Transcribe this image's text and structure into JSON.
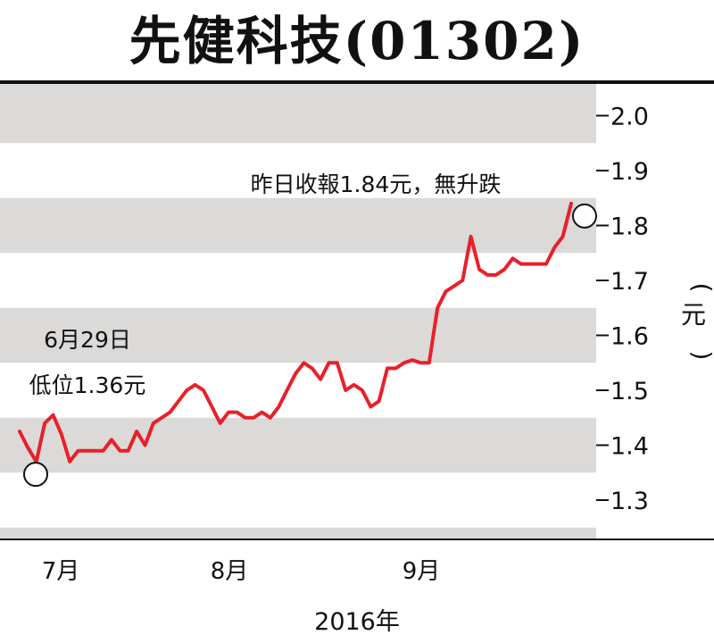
{
  "title": "先健科技(01302)",
  "colors": {
    "line": "#e8202a",
    "band": "#dcdad8",
    "text": "#111111",
    "background": "#ffffff"
  },
  "chart_data": {
    "type": "line",
    "title": "先健科技(01302)",
    "ylabel": "元",
    "xlabel": "2016年",
    "ylim": [
      1.25,
      2.05
    ],
    "y_ticks": [
      "2.0",
      "1.9",
      "1.8",
      "1.7",
      "1.6",
      "1.5",
      "1.4",
      "1.3"
    ],
    "x_ticks": [
      "7月",
      "8月",
      "9月"
    ],
    "background_bands": true,
    "series": [
      {
        "values": [
          1.425,
          1.395,
          1.37,
          1.44,
          1.455,
          1.42,
          1.37,
          1.39,
          1.39,
          1.39,
          1.39,
          1.41,
          1.39,
          1.39,
          1.425,
          1.4,
          1.44,
          1.45,
          1.46,
          1.48,
          1.5,
          1.51,
          1.5,
          1.47,
          1.44,
          1.46,
          1.46,
          1.45,
          1.45,
          1.46,
          1.45,
          1.47,
          1.5,
          1.53,
          1.55,
          1.54,
          1.52,
          1.55,
          1.55,
          1.5,
          1.51,
          1.5,
          1.47,
          1.48,
          1.54,
          1.54,
          1.55,
          1.555,
          1.55,
          1.55,
          1.65,
          1.68,
          1.69,
          1.7,
          1.78,
          1.72,
          1.71,
          1.71,
          1.72,
          1.74,
          1.73,
          1.73,
          1.73,
          1.73,
          1.76,
          1.78,
          1.84
        ]
      }
    ],
    "annotations": [
      {
        "lines": [
          "6月29日",
          "低位1.36元"
        ],
        "point_index": 2,
        "value": 1.36
      },
      {
        "lines": [
          "昨日收報1.84元，無升跌"
        ],
        "point_index": 66,
        "value": 1.84
      }
    ]
  }
}
